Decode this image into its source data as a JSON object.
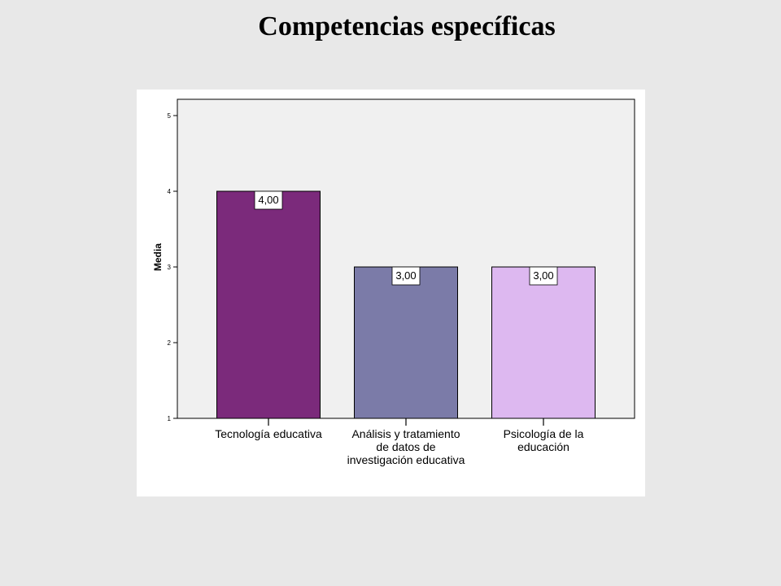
{
  "slide": {
    "title": "Competencias específicas"
  },
  "chart_data": {
    "type": "bar",
    "title": "Competencias específicas",
    "categories": [
      "Tecnología educativa",
      "Análisis y tratamiento de datos de investigación educativa",
      "Psicología de la educación"
    ],
    "category_lines": [
      [
        "Tecnología educativa"
      ],
      [
        "Análisis y tratamiento",
        "de datos de",
        "investigación educativa"
      ],
      [
        "Psicología de la",
        "educación"
      ]
    ],
    "values": [
      4.0,
      3.0,
      3.0
    ],
    "data_labels": [
      "4,00",
      "3,00",
      "3,00"
    ],
    "bar_colors": [
      "#7b2a7b",
      "#7b7ba8",
      "#ddb8f0"
    ],
    "ylabel": "Media",
    "xlabel": "",
    "ylim": [
      1,
      5
    ],
    "yticks": [
      "1",
      "2",
      "3",
      "4",
      "5"
    ],
    "grid": false,
    "plot_background": "#f0f0f0"
  }
}
